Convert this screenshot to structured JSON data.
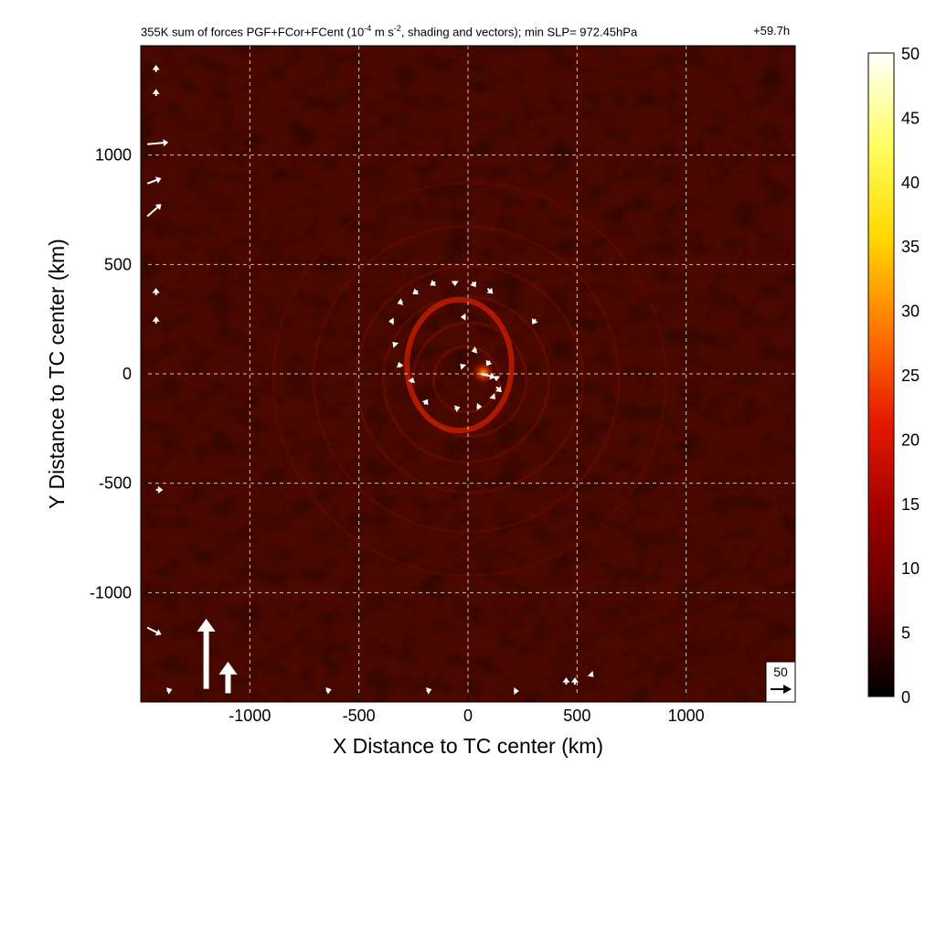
{
  "title": {
    "prefix": "355K sum of forces PGF+FCor+FCent (10",
    "exp1": "-4",
    "mid": " m s",
    "exp2": "-2",
    "suffix": ", shading and vectors); min SLP= 972.45hPa",
    "time": "+59.7h"
  },
  "chart_data": {
    "type": "heatmap",
    "xlabel": "X Distance to TC center (km)",
    "ylabel": "Y Distance to TC center (km)",
    "xlim": [
      -1500,
      1500
    ],
    "ylim": [
      -1500,
      1500
    ],
    "xticks": [
      -1000,
      -500,
      0,
      500,
      1000
    ],
    "yticks": [
      -1000,
      -500,
      0,
      500,
      1000
    ],
    "xtick_labels": [
      "-1000",
      "-500",
      "0",
      "500",
      "1000"
    ],
    "ytick_labels": [
      "-1000",
      "-500",
      "0",
      "500",
      "1000"
    ],
    "grid": true,
    "grid_style": "dashed",
    "colorbar": {
      "min": 0,
      "max": 50,
      "ticks": [
        0,
        5,
        10,
        15,
        20,
        25,
        30,
        35,
        40,
        45,
        50
      ],
      "tick_labels": [
        "0",
        "5",
        "10",
        "15",
        "20",
        "25",
        "30",
        "35",
        "40",
        "45",
        "50"
      ],
      "colormap": [
        "#000000",
        "#5a0000",
        "#a00000",
        "#e81a00",
        "#ff7800",
        "#ffd800",
        "#ffff60",
        "#ffffff"
      ]
    },
    "reference_vector": {
      "label": "50",
      "value": 50
    },
    "vectors": [
      {
        "x": -1470,
        "y": 1050,
        "u": 12,
        "v": 1
      },
      {
        "x": -1470,
        "y": 870,
        "u": 8,
        "v": 3
      },
      {
        "x": -1470,
        "y": 720,
        "u": 8,
        "v": 7
      },
      {
        "x": -1470,
        "y": -1160,
        "u": 8,
        "v": -4
      },
      {
        "x": -1200,
        "y": -1440,
        "u": 0,
        "v": 40
      },
      {
        "x": -1100,
        "y": -1460,
        "u": 0,
        "v": 18
      },
      {
        "x": -1430,
        "y": 1380,
        "u": 0,
        "v": 4
      },
      {
        "x": -1430,
        "y": 1270,
        "u": 0,
        "v": 4
      },
      {
        "x": -1430,
        "y": 360,
        "u": 0,
        "v": 4
      },
      {
        "x": -1430,
        "y": 230,
        "u": 0,
        "v": 4
      },
      {
        "x": -1430,
        "y": -530,
        "u": 4,
        "v": 0
      },
      {
        "x": -150,
        "y": 420,
        "u": -3,
        "v": -2
      },
      {
        "x": -60,
        "y": 425,
        "u": 0,
        "v": -3
      },
      {
        "x": 20,
        "y": 420,
        "u": 2,
        "v": -3
      },
      {
        "x": 90,
        "y": 390,
        "u": 3,
        "v": -3
      },
      {
        "x": -230,
        "y": 380,
        "u": -3,
        "v": -2
      },
      {
        "x": -300,
        "y": 330,
        "u": -3,
        "v": -1
      },
      {
        "x": -340,
        "y": 240,
        "u": -3,
        "v": 0
      },
      {
        "x": -330,
        "y": 130,
        "u": -2,
        "v": 2
      },
      {
        "x": -310,
        "y": 30,
        "u": -1,
        "v": 3
      },
      {
        "x": -260,
        "y": -40,
        "u": 1,
        "v": 3
      },
      {
        "x": -200,
        "y": -140,
        "u": 2,
        "v": 3
      },
      {
        "x": -60,
        "y": -160,
        "u": 3,
        "v": 1
      },
      {
        "x": 40,
        "y": -150,
        "u": 3,
        "v": 0
      },
      {
        "x": 110,
        "y": -100,
        "u": 2,
        "v": -2
      },
      {
        "x": 130,
        "y": -10,
        "u": 0,
        "v": -3
      },
      {
        "x": 100,
        "y": 60,
        "u": -2,
        "v": -3
      },
      {
        "x": 40,
        "y": 110,
        "u": -3,
        "v": -1
      },
      {
        "x": -20,
        "y": 30,
        "u": -2,
        "v": 2
      },
      {
        "x": -10,
        "y": 260,
        "u": -3,
        "v": 0
      },
      {
        "x": 60,
        "y": 0,
        "u": 8,
        "v": -2
      },
      {
        "x": 130,
        "y": -60,
        "u": 3,
        "v": -3
      },
      {
        "x": 310,
        "y": 250,
        "u": -2,
        "v": -3
      },
      {
        "x": 450,
        "y": -1420,
        "u": 0,
        "v": 4
      },
      {
        "x": 490,
        "y": -1420,
        "u": 0,
        "v": 4
      },
      {
        "x": -1380,
        "y": -1450,
        "u": 3,
        "v": 1
      },
      {
        "x": -650,
        "y": -1450,
        "u": 3,
        "v": 1
      },
      {
        "x": -190,
        "y": -1450,
        "u": 3,
        "v": 1
      },
      {
        "x": 210,
        "y": -1450,
        "u": 3,
        "v": 0
      },
      {
        "x": 560,
        "y": -1370,
        "u": 2,
        "v": -2
      }
    ]
  }
}
